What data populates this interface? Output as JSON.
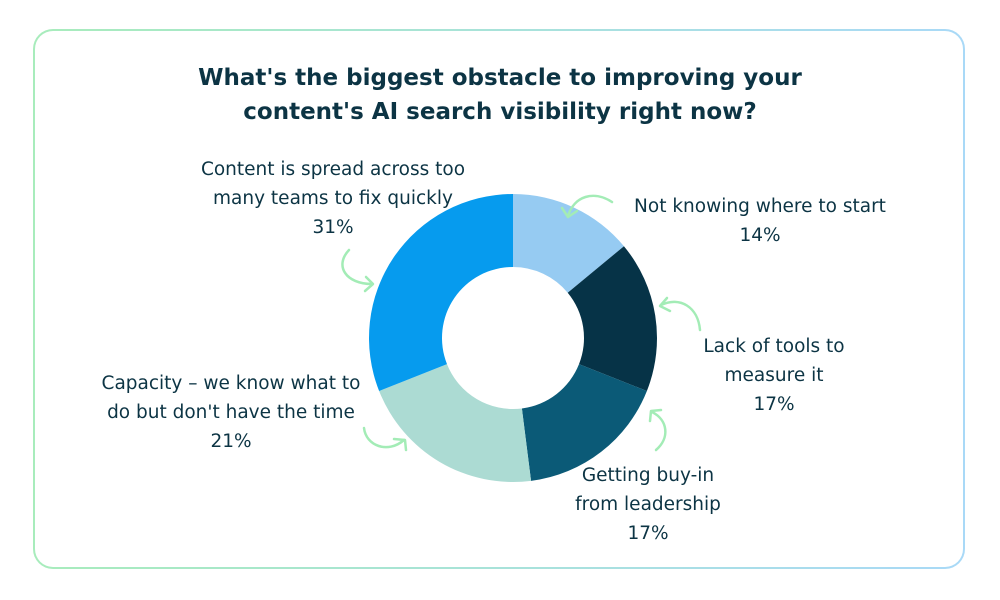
{
  "chart_data": {
    "type": "pie",
    "subtype": "donut",
    "title_lines": [
      "What's the biggest obstacle to improving your",
      "content's AI search visibility right now?"
    ],
    "slices": [
      {
        "label_lines": [
          "Not knowing where to start"
        ],
        "value": 14,
        "value_label": "14%",
        "color": "#96cbf2"
      },
      {
        "label_lines": [
          "Lack of tools to",
          "measure it"
        ],
        "value": 17,
        "value_label": "17%",
        "color": "#063347"
      },
      {
        "label_lines": [
          "Getting buy-in",
          "from leadership"
        ],
        "value": 17,
        "value_label": "17%",
        "color": "#0b5a77"
      },
      {
        "label_lines": [
          "Capacity – we know what to",
          "do but don't have the time"
        ],
        "value": 21,
        "value_label": "21%",
        "color": "#acdbd3"
      },
      {
        "label_lines": [
          "Content is spread across too",
          "many teams to fix quickly"
        ],
        "value": 31,
        "value_label": "31%",
        "color": "#069bee"
      }
    ],
    "legend": "none",
    "arrow_color": "#a3ecb6"
  },
  "card": {
    "border_gradient": [
      "#a8ecbc",
      "#a9d9f7"
    ]
  }
}
